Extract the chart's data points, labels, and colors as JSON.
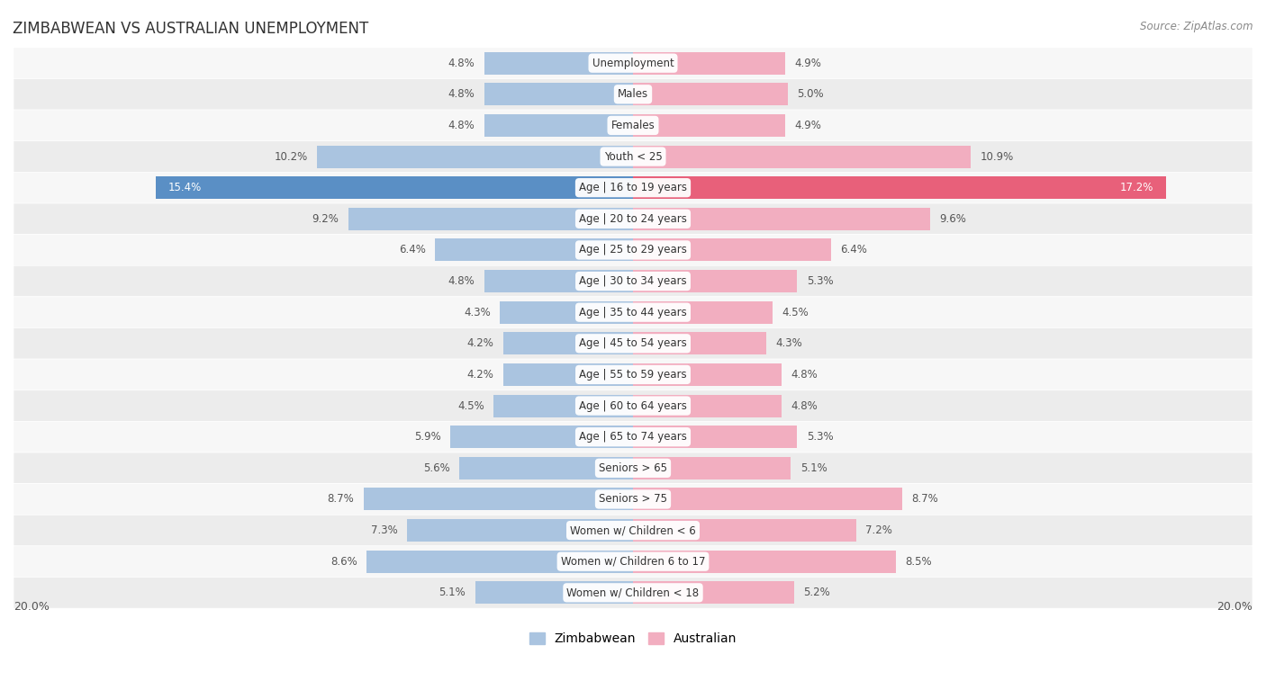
{
  "title": "ZIMBABWEAN VS AUSTRALIAN UNEMPLOYMENT",
  "source": "Source: ZipAtlas.com",
  "categories": [
    "Unemployment",
    "Males",
    "Females",
    "Youth < 25",
    "Age | 16 to 19 years",
    "Age | 20 to 24 years",
    "Age | 25 to 29 years",
    "Age | 30 to 34 years",
    "Age | 35 to 44 years",
    "Age | 45 to 54 years",
    "Age | 55 to 59 years",
    "Age | 60 to 64 years",
    "Age | 65 to 74 years",
    "Seniors > 65",
    "Seniors > 75",
    "Women w/ Children < 6",
    "Women w/ Children 6 to 17",
    "Women w/ Children < 18"
  ],
  "zimbabwe_values": [
    4.8,
    4.8,
    4.8,
    10.2,
    15.4,
    9.2,
    6.4,
    4.8,
    4.3,
    4.2,
    4.2,
    4.5,
    5.9,
    5.6,
    8.7,
    7.3,
    8.6,
    5.1
  ],
  "australia_values": [
    4.9,
    5.0,
    4.9,
    10.9,
    17.2,
    9.6,
    6.4,
    5.3,
    4.5,
    4.3,
    4.8,
    4.8,
    5.3,
    5.1,
    8.7,
    7.2,
    8.5,
    5.2
  ],
  "zimbabwe_color": "#aac4e0",
  "australia_color": "#f2aec0",
  "highlight_zimbabwe_color": "#5a8fc5",
  "highlight_australia_color": "#e8607a",
  "highlight_row": 4,
  "x_max": 20.0,
  "row_bg_light": "#f7f7f7",
  "row_bg_dark": "#ececec",
  "legend_zimbabwe": "Zimbabwean",
  "legend_australia": "Australian"
}
